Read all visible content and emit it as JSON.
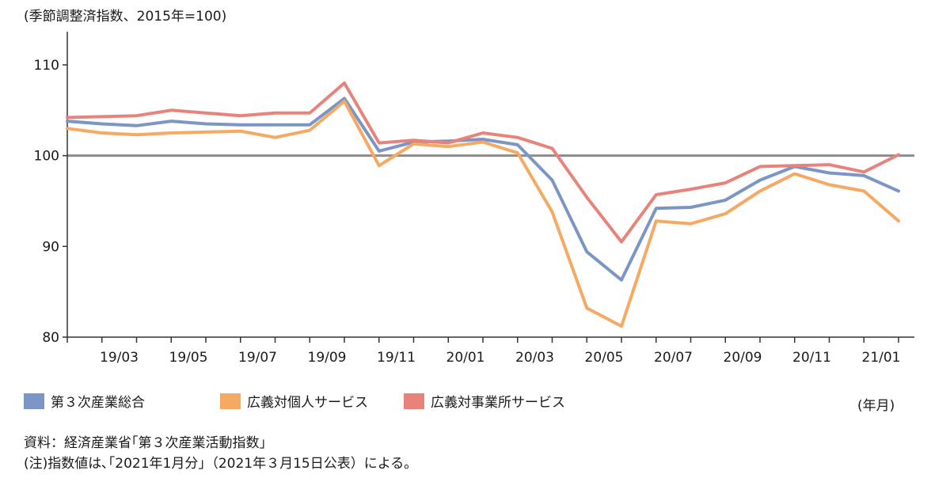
{
  "chart_data": {
    "type": "line",
    "y_unit_label": "(季節調整済指数、2015年=100)",
    "x_unit_label": "(年月)",
    "ylim": [
      80,
      110
    ],
    "yticks": [
      80,
      90,
      100,
      110
    ],
    "reference_line": 100,
    "x": [
      "19/01",
      "19/02",
      "19/03",
      "19/04",
      "19/05",
      "19/06",
      "19/07",
      "19/08",
      "19/09",
      "19/10",
      "19/11",
      "19/12",
      "20/01",
      "20/02",
      "20/03",
      "20/04",
      "20/05",
      "20/06",
      "20/07",
      "20/08",
      "20/09",
      "20/10",
      "20/11",
      "20/12",
      "21/01"
    ],
    "x_tick_labels": [
      {
        "index": 2,
        "label": "19/03"
      },
      {
        "index": 4,
        "label": "19/05"
      },
      {
        "index": 6,
        "label": "19/07"
      },
      {
        "index": 8,
        "label": "19/09"
      },
      {
        "index": 10,
        "label": "19/11"
      },
      {
        "index": 12,
        "label": "20/01"
      },
      {
        "index": 14,
        "label": "20/03"
      },
      {
        "index": 16,
        "label": "20/05"
      },
      {
        "index": 18,
        "label": "20/07"
      },
      {
        "index": 20,
        "label": "20/09"
      },
      {
        "index": 22,
        "label": "20/11"
      },
      {
        "index": 24,
        "label": "21/01"
      }
    ],
    "series": [
      {
        "name": "第３次産業総合",
        "color": "#7b96c5",
        "values": [
          103.8,
          103.5,
          103.3,
          103.8,
          103.5,
          103.4,
          103.4,
          103.4,
          106.3,
          100.5,
          101.5,
          101.6,
          101.8,
          101.2,
          97.3,
          89.4,
          86.3,
          94.2,
          94.3,
          95.1,
          97.3,
          98.8,
          98.1,
          97.8,
          96.1
        ]
      },
      {
        "name": "広義対個人サービス",
        "color": "#f5a963",
        "values": [
          103.0,
          102.5,
          102.3,
          102.5,
          102.6,
          102.7,
          102.0,
          102.8,
          106.0,
          98.9,
          101.3,
          101.0,
          101.5,
          100.3,
          93.8,
          83.2,
          81.2,
          92.8,
          92.5,
          93.6,
          96.1,
          98.0,
          96.8,
          96.1,
          92.8
        ]
      },
      {
        "name": "広義対事業所サービス",
        "color": "#e8837c",
        "values": [
          104.2,
          104.3,
          104.4,
          105.0,
          104.7,
          104.4,
          104.7,
          104.7,
          108.0,
          101.4,
          101.7,
          101.4,
          102.5,
          102.0,
          100.8,
          95.4,
          90.5,
          95.7,
          96.3,
          97.0,
          98.8,
          98.9,
          99.0,
          98.2,
          100.1
        ]
      }
    ]
  },
  "notes": {
    "source": "資料：経済産業省｢第３次産業活動指数｣",
    "note": "(注)指数値は､｢2021年1月分｣（2021年３月15日公表）による｡"
  }
}
